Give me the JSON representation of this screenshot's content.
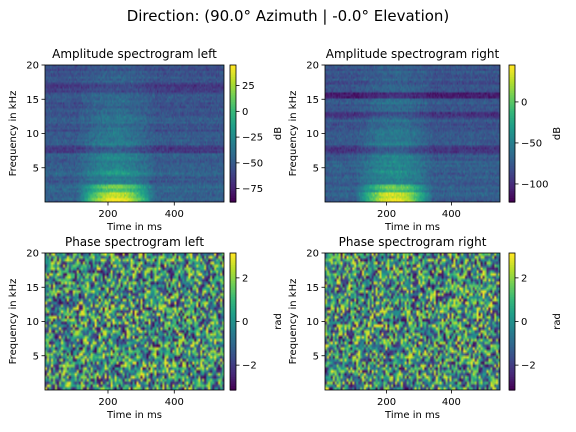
{
  "figure": {
    "suptitle": "Direction: (90.0° Azimuth | -0.0° Elevation)"
  },
  "chart_data": [
    {
      "type": "heatmap",
      "title": "Amplitude spectrogram left",
      "xlabel": "Time in ms",
      "ylabel": "Frequency in kHz",
      "xlim": [
        10,
        550
      ],
      "ylim": [
        0,
        20
      ],
      "xticks": [
        200,
        400
      ],
      "yticks": [
        5,
        10,
        15,
        20
      ],
      "colorbar": {
        "label": "dB",
        "range": [
          -88,
          45
        ],
        "ticks": [
          25,
          0,
          -25,
          -50,
          -75
        ],
        "colormap": "viridis"
      }
    },
    {
      "type": "heatmap",
      "title": "Amplitude spectrogram right",
      "xlabel": "Time in ms",
      "ylabel": "Frequency in kHz",
      "xlim": [
        10,
        550
      ],
      "ylim": [
        0,
        20
      ],
      "xticks": [
        200,
        400
      ],
      "yticks": [
        5,
        10,
        15,
        20
      ],
      "colorbar": {
        "label": "dB",
        "range": [
          -122,
          45
        ],
        "ticks": [
          0,
          -50,
          -100
        ],
        "colormap": "viridis"
      }
    },
    {
      "type": "heatmap",
      "title": "Phase spectrogram left",
      "xlabel": "Time in ms",
      "ylabel": "Frequency in kHz",
      "xlim": [
        10,
        550
      ],
      "ylim": [
        0,
        20
      ],
      "xticks": [
        200,
        400
      ],
      "yticks": [
        5,
        10,
        15,
        20
      ],
      "colorbar": {
        "label": "rad",
        "range": [
          -3.14,
          3.14
        ],
        "ticks": [
          2,
          0,
          -2
        ],
        "colormap": "viridis"
      }
    },
    {
      "type": "heatmap",
      "title": "Phase spectrogram right",
      "xlabel": "Time in ms",
      "ylabel": "Frequency in kHz",
      "xlim": [
        10,
        550
      ],
      "ylim": [
        0,
        20
      ],
      "xticks": [
        200,
        400
      ],
      "yticks": [
        5,
        10,
        15,
        20
      ],
      "colorbar": {
        "label": "rad",
        "range": [
          -3.14,
          3.14
        ],
        "ticks": [
          2,
          0,
          -2
        ],
        "colormap": "viridis"
      }
    }
  ]
}
